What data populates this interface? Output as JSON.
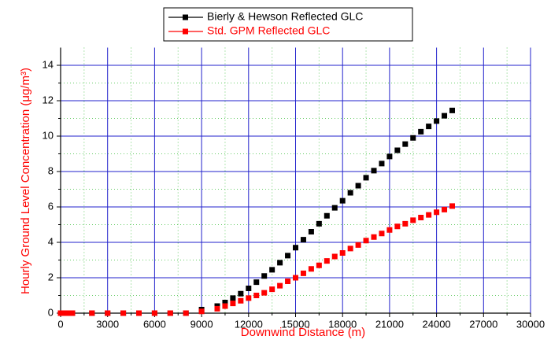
{
  "chart_data": {
    "type": "scatter",
    "xlabel": "Downwind Distance (m)",
    "ylabel": "Hourly Ground Level Concentration (μg/m³)",
    "x": [
      0,
      250,
      500,
      750,
      2000,
      3000,
      4000,
      5000,
      6000,
      7000,
      8000,
      9000,
      10000,
      10500,
      11000,
      11500,
      12000,
      12500,
      13000,
      13500,
      14000,
      14500,
      15000,
      15500,
      16000,
      16500,
      17000,
      17500,
      18000,
      18500,
      19000,
      19500,
      20000,
      20500,
      21000,
      21500,
      22000,
      22500,
      23000,
      23500,
      24000,
      24500,
      25000
    ],
    "series": [
      {
        "name": "Bierly & Hewson Reflected GLC",
        "color": "#000000",
        "values": [
          0,
          0,
          0,
          0,
          0,
          0,
          0,
          0,
          0,
          0,
          0,
          0.2,
          0.4,
          0.6,
          0.85,
          1.1,
          1.4,
          1.75,
          2.1,
          2.45,
          2.85,
          3.25,
          3.7,
          4.15,
          4.6,
          5.05,
          5.5,
          5.95,
          6.35,
          6.8,
          7.2,
          7.65,
          8.05,
          8.45,
          8.85,
          9.2,
          9.55,
          9.9,
          10.25,
          10.55,
          10.85,
          11.15,
          11.45
        ]
      },
      {
        "name": "Std. GPM Reflected GLC",
        "color": "#ff0000",
        "values": [
          0,
          0,
          0,
          0,
          0,
          0,
          0,
          0,
          0,
          0,
          0,
          0.1,
          0.25,
          0.4,
          0.55,
          0.7,
          0.85,
          1.0,
          1.15,
          1.35,
          1.55,
          1.8,
          2.0,
          2.25,
          2.5,
          2.7,
          2.95,
          3.2,
          3.4,
          3.65,
          3.85,
          4.1,
          4.3,
          4.5,
          4.7,
          4.9,
          5.05,
          5.25,
          5.4,
          5.55,
          5.7,
          5.85,
          6.05
        ]
      }
    ],
    "xlim": [
      0,
      30000
    ],
    "xticks": [
      0,
      3000,
      6000,
      9000,
      12000,
      15000,
      18000,
      21000,
      24000,
      27000,
      30000
    ],
    "ylim": [
      0,
      15
    ],
    "yticks": [
      0,
      2,
      4,
      6,
      8,
      10,
      12,
      14
    ],
    "grid": true,
    "legend": "top"
  }
}
